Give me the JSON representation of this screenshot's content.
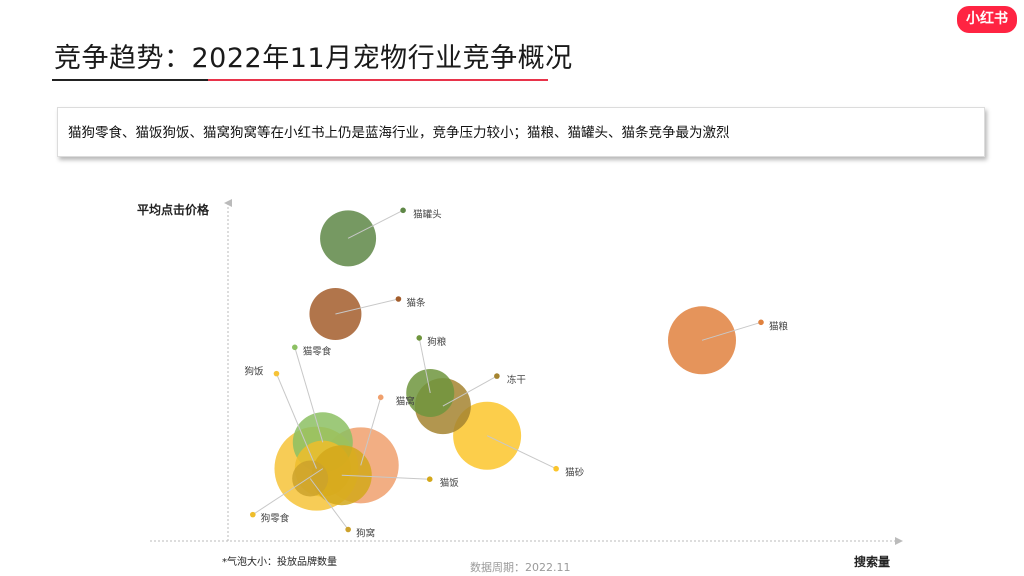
{
  "header": {
    "title": "竞争趋势：2022年11月宠物行业竞争概况",
    "logo": "小红书"
  },
  "summary": "猫狗零食、猫饭狗饭、猫窝狗窝等在小红书上仍是蓝海行业，竞争压力较小；猫粮、猫罐头、猫条竞争最为激烈",
  "note": "*气泡大小：投放品牌数量",
  "footer": "数据周期：2022.11",
  "chart_data": {
    "type": "scatter",
    "title": "",
    "xlabel": "搜索量",
    "ylabel": "平均点击价格",
    "xlim": [
      0,
      100
    ],
    "ylim": [
      0,
      100
    ],
    "grid": false,
    "bubble_size_meaning": "投放品牌数量",
    "points": [
      {
        "name": "狗饭",
        "x": 14,
        "y": 22,
        "size": 42,
        "color": "#f6c338"
      },
      {
        "name": "猫窝",
        "x": 21,
        "y": 23,
        "size": 38,
        "color": "#f0a06d"
      },
      {
        "name": "猫零食",
        "x": 15,
        "y": 30,
        "size": 30,
        "color": "#8cc063"
      },
      {
        "name": "狗零食",
        "x": 15,
        "y": 22,
        "size": 28,
        "color": "#eebd2c"
      },
      {
        "name": "猫饭",
        "x": 18,
        "y": 20,
        "size": 30,
        "color": "#d4a81b"
      },
      {
        "name": "狗窝",
        "x": 13,
        "y": 19,
        "size": 18,
        "color": "#cda22c"
      },
      {
        "name": "猫砂",
        "x": 41,
        "y": 32,
        "size": 34,
        "color": "#fbc52c"
      },
      {
        "name": "冻干",
        "x": 34,
        "y": 41,
        "size": 28,
        "color": "#a58430"
      },
      {
        "name": "狗粮",
        "x": 32,
        "y": 45,
        "size": 24,
        "color": "#6f953d"
      },
      {
        "name": "猫粮",
        "x": 75,
        "y": 61,
        "size": 34,
        "color": "#e0813e"
      },
      {
        "name": "猫条",
        "x": 17,
        "y": 69,
        "size": 26,
        "color": "#a35d2c"
      },
      {
        "name": "猫罐头",
        "x": 19,
        "y": 92,
        "size": 28,
        "color": "#5e8746"
      }
    ]
  }
}
